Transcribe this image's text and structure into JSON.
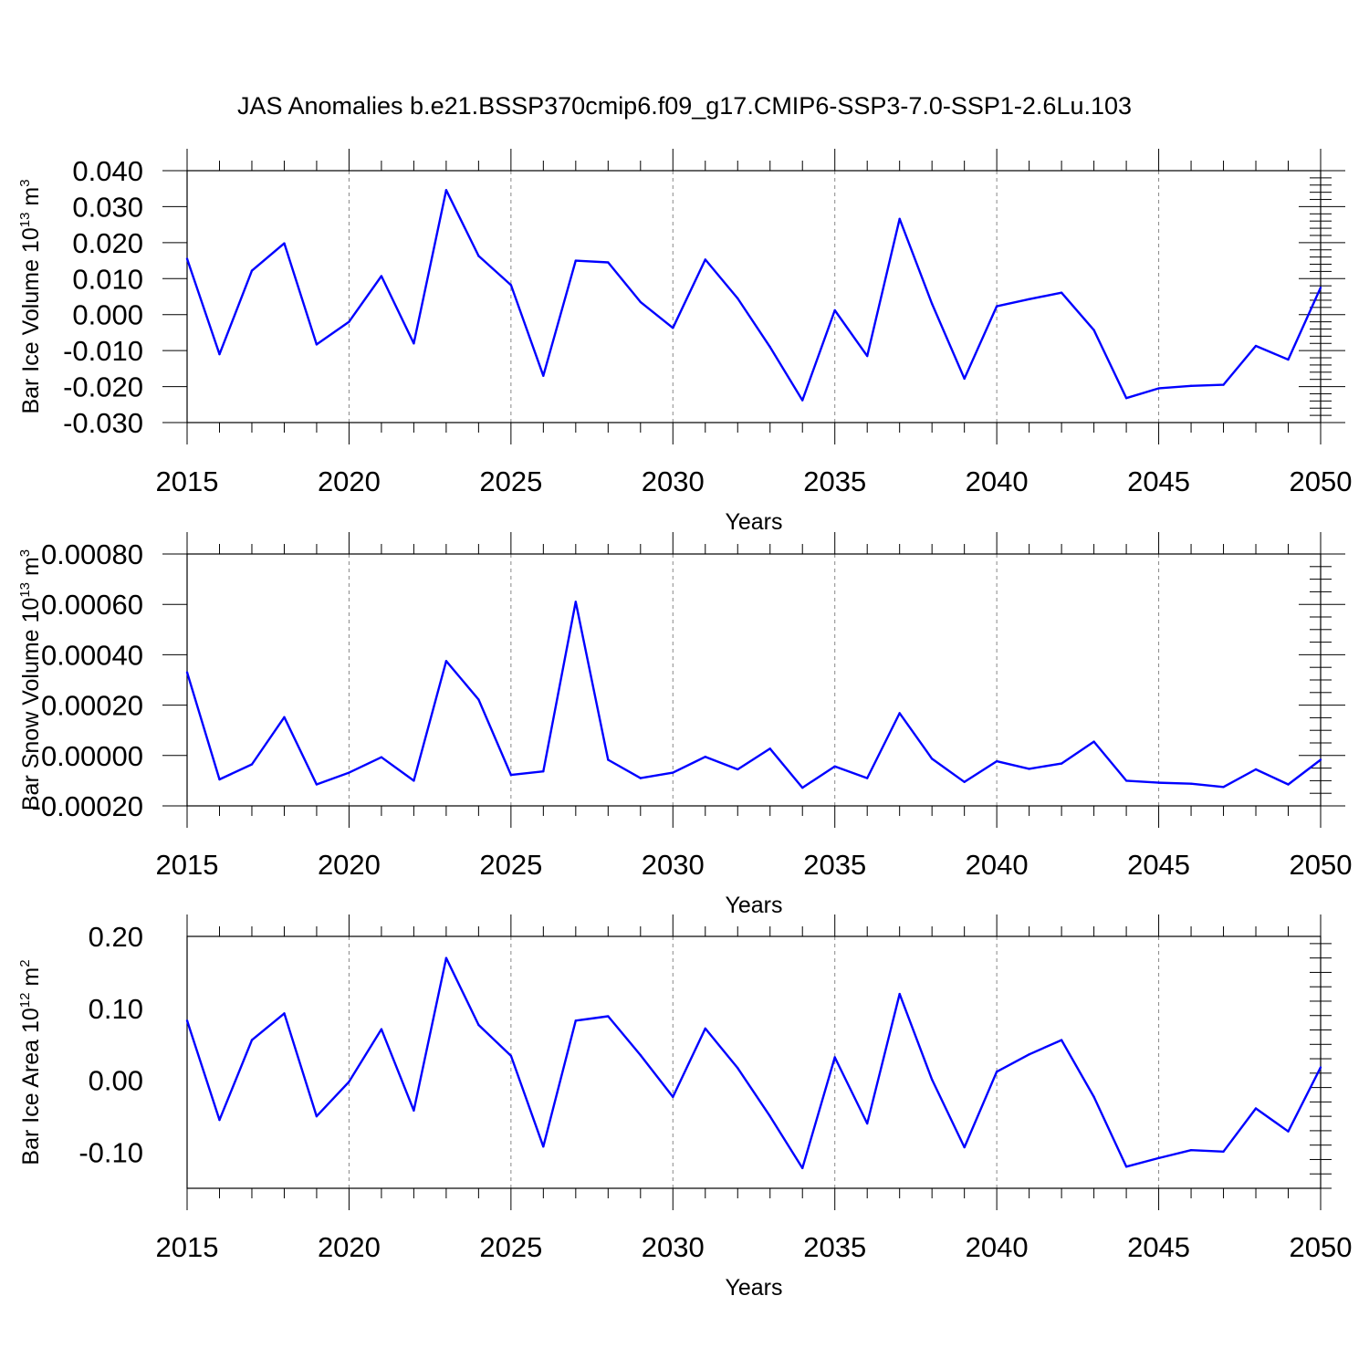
{
  "chart_data": [
    {
      "type": "line",
      "title": "JAS Anomalies b.e21.BSSP370cmip6.f09_g17.CMIP6-SSP3-7.0-SSP1-2.6Lu.103",
      "ylabel": {
        "base": "Bar Ice Volume 10",
        "exp": "13",
        "unit": " m",
        "unit_exp": "3"
      },
      "xlabel": "Years",
      "xlim": [
        2015,
        2050
      ],
      "ylim": [
        -0.03,
        0.04
      ],
      "xticks": [
        "2015",
        "2020",
        "2025",
        "2030",
        "2035",
        "2040",
        "2045",
        "2050"
      ],
      "yticks": [
        "-0.030",
        "-0.020",
        "-0.010",
        "0.000",
        "0.010",
        "0.020",
        "0.030",
        "0.040"
      ],
      "grid": "vertical dashed at major x ticks",
      "series": [
        {
          "name": "Bar Ice Volume",
          "color": "#0000ff",
          "x": [
            2015,
            2016,
            2017,
            2018,
            2019,
            2020,
            2021,
            2022,
            2023,
            2024,
            2025,
            2026,
            2027,
            2028,
            2029,
            2030,
            2031,
            2032,
            2033,
            2034,
            2035,
            2036,
            2037,
            2038,
            2039,
            2040,
            2041,
            2042,
            2043,
            2044,
            2045,
            2046,
            2047,
            2048,
            2049,
            2050
          ],
          "y": [
            0.0155,
            -0.011,
            0.0122,
            0.0198,
            -0.0083,
            -0.002,
            0.0107,
            -0.008,
            0.0346,
            0.0163,
            0.0082,
            -0.017,
            0.015,
            0.0145,
            0.0035,
            -0.0037,
            0.0153,
            0.0045,
            -0.009,
            -0.0238,
            0.0012,
            -0.0115,
            0.0266,
            0.003,
            -0.0178,
            0.0023,
            0.0043,
            0.0061,
            -0.0043,
            -0.0232,
            -0.0205,
            -0.0198,
            -0.0195,
            -0.0087,
            -0.0125,
            0.0075
          ]
        }
      ]
    },
    {
      "type": "line",
      "ylabel": {
        "base": "Bar Snow Volume 10",
        "exp": "13",
        "unit": " m",
        "unit_exp": "3"
      },
      "xlabel": "Years",
      "xlim": [
        2015,
        2050
      ],
      "ylim": [
        -0.0002,
        0.0008
      ],
      "xticks": [
        "2015",
        "2020",
        "2025",
        "2030",
        "2035",
        "2040",
        "2045",
        "2050"
      ],
      "yticks": [
        "-0.00020",
        "0.00000",
        "0.00020",
        "0.00040",
        "0.00060",
        "0.00080"
      ],
      "grid": "vertical dashed at major x ticks",
      "series": [
        {
          "name": "Bar Snow Volume",
          "color": "#0000ff",
          "x": [
            2015,
            2016,
            2017,
            2018,
            2019,
            2020,
            2021,
            2022,
            2023,
            2024,
            2025,
            2026,
            2027,
            2028,
            2029,
            2030,
            2031,
            2032,
            2033,
            2034,
            2035,
            2036,
            2037,
            2038,
            2039,
            2040,
            2041,
            2042,
            2043,
            2044,
            2045,
            2046,
            2047,
            2048,
            2049,
            2050
          ],
          "y": [
            0.00033,
            -9.5e-05,
            -3.5e-05,
            0.000152,
            -0.000115,
            -6.8e-05,
            -7e-06,
            -0.0001,
            0.000375,
            0.000222,
            -7.7e-05,
            -6.3e-05,
            0.00061,
            -1.7e-05,
            -9e-05,
            -6.8e-05,
            -5e-06,
            -5.5e-05,
            2.7e-05,
            -0.000128,
            -4.3e-05,
            -9e-05,
            0.000168,
            -1.3e-05,
            -0.000105,
            -2.3e-05,
            -5.3e-05,
            -3.2e-05,
            5.5e-05,
            -0.0001,
            -0.000108,
            -0.000112,
            -0.000125,
            -5.5e-05,
            -0.000115,
            -1.7e-05
          ]
        }
      ]
    },
    {
      "type": "line",
      "ylabel": {
        "base": "Bar Ice Area 10",
        "exp": "12",
        "unit": " m",
        "unit_exp": "2"
      },
      "xlabel": "Years",
      "xlim": [
        2015,
        2050
      ],
      "ylim": [
        -0.15,
        0.2
      ],
      "xticks": [
        "2015",
        "2020",
        "2025",
        "2030",
        "2035",
        "2040",
        "2045",
        "2050"
      ],
      "yticks": [
        "-0.10",
        "0.00",
        "0.10",
        "0.20"
      ],
      "grid": "vertical dashed at major x ticks",
      "series": [
        {
          "name": "Bar Ice Area",
          "color": "#0000ff",
          "x": [
            2015,
            2016,
            2017,
            2018,
            2019,
            2020,
            2021,
            2022,
            2023,
            2024,
            2025,
            2026,
            2027,
            2028,
            2029,
            2030,
            2031,
            2032,
            2033,
            2034,
            2035,
            2036,
            2037,
            2038,
            2039,
            2040,
            2041,
            2042,
            2043,
            2044,
            2045,
            2046,
            2047,
            2048,
            2049,
            2050
          ],
          "y": [
            0.083,
            -0.055,
            0.056,
            0.093,
            -0.05,
            -0.002,
            0.071,
            -0.042,
            0.17,
            0.077,
            0.034,
            -0.092,
            0.083,
            0.089,
            0.035,
            -0.023,
            0.072,
            0.017,
            -0.05,
            -0.122,
            0.032,
            -0.06,
            0.12,
            0.001,
            -0.093,
            0.012,
            0.036,
            0.056,
            -0.023,
            -0.12,
            -0.108,
            -0.097,
            -0.099,
            -0.039,
            -0.071,
            0.018
          ]
        }
      ]
    }
  ]
}
